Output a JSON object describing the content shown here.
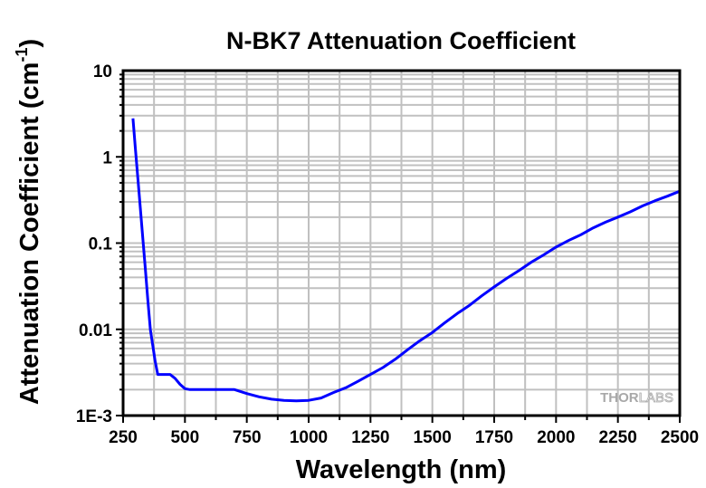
{
  "chart_data": {
    "type": "line",
    "title": "N-BK7 Attenuation Coefficient",
    "xlabel": "Wavelength (nm)",
    "ylabel": "Attenuation Coefficient (cm",
    "ylabel_superscript": "-1",
    "ylabel_close": ")",
    "xlim": [
      250,
      2500
    ],
    "ylim": [
      0.001,
      10
    ],
    "yscale": "log",
    "grid": true,
    "xticks": [
      250,
      500,
      750,
      1000,
      1250,
      1500,
      1750,
      2000,
      2250,
      2500
    ],
    "xtick_labels": [
      "250",
      "500",
      "750",
      "1000",
      "1250",
      "1500",
      "1750",
      "2000",
      "2250",
      "2500"
    ],
    "yticks": [
      0.001,
      0.01,
      0.1,
      1,
      10
    ],
    "ytick_labels": [
      "1E-3",
      "0.01",
      "0.1",
      "1",
      "10"
    ],
    "series": [
      {
        "name": "N-BK7",
        "color": "#0000ff",
        "x": [
          290,
          300,
          310,
          320,
          330,
          340,
          350,
          360,
          370,
          380,
          390,
          400,
          420,
          440,
          460,
          480,
          500,
          520,
          550,
          600,
          650,
          700,
          750,
          800,
          850,
          900,
          950,
          1000,
          1050,
          1100,
          1150,
          1200,
          1250,
          1300,
          1350,
          1400,
          1450,
          1500,
          1550,
          1600,
          1650,
          1700,
          1750,
          1800,
          1850,
          1900,
          1950,
          2000,
          2050,
          2100,
          2150,
          2200,
          2250,
          2300,
          2350,
          2400,
          2450,
          2500
        ],
        "y": [
          2.8,
          1.2,
          0.55,
          0.25,
          0.11,
          0.05,
          0.022,
          0.01,
          0.0065,
          0.0042,
          0.003,
          0.003,
          0.003,
          0.003,
          0.0027,
          0.0023,
          0.00205,
          0.002,
          0.002,
          0.002,
          0.002,
          0.002,
          0.0018,
          0.00165,
          0.00155,
          0.0015,
          0.00148,
          0.0015,
          0.0016,
          0.00185,
          0.0021,
          0.0025,
          0.003,
          0.0036,
          0.0045,
          0.0058,
          0.0074,
          0.0092,
          0.0119,
          0.0152,
          0.019,
          0.0245,
          0.031,
          0.039,
          0.048,
          0.06,
          0.073,
          0.09,
          0.107,
          0.125,
          0.15,
          0.175,
          0.2,
          0.23,
          0.27,
          0.31,
          0.35,
          0.4
        ]
      }
    ],
    "legend": "none",
    "watermark": {
      "bold": "THOR",
      "light": "LABS"
    }
  }
}
